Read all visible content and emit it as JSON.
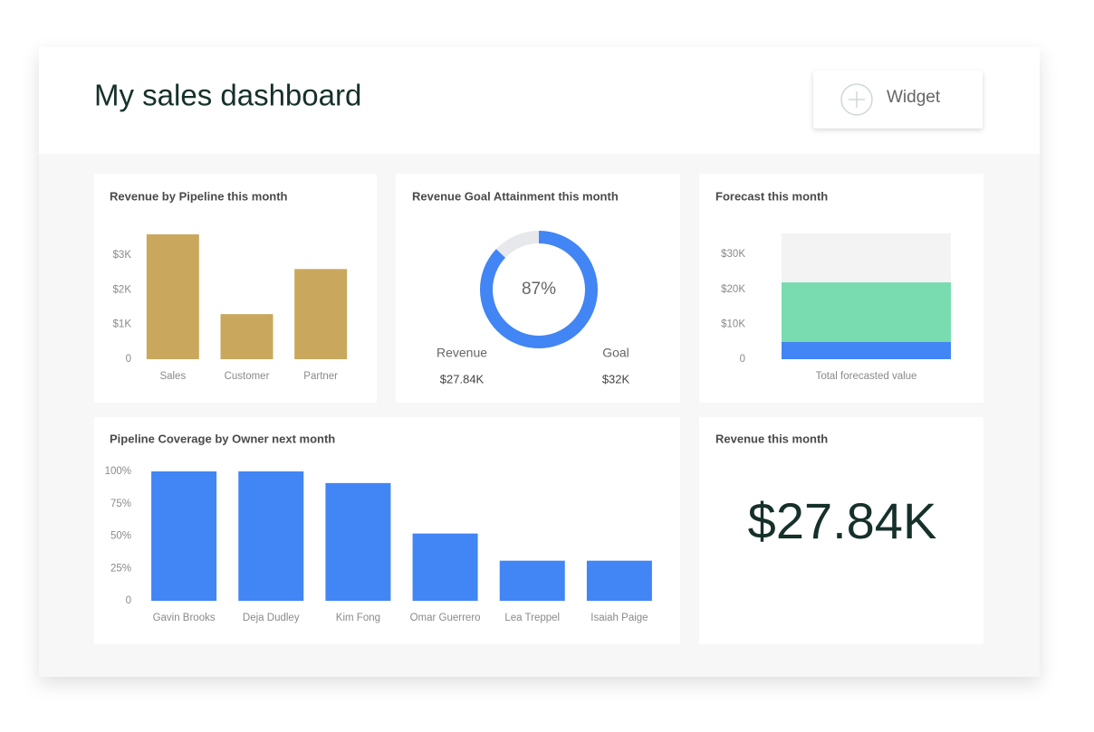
{
  "header": {
    "title": "My sales dashboard",
    "button": "Widget"
  },
  "chart_data": [
    {
      "type": "bar",
      "title": "Revenue by Pipeline this month",
      "categories": [
        "Sales",
        "Customer",
        "Partner"
      ],
      "values": [
        3600,
        1300,
        2600
      ],
      "color": "#c9a85e",
      "ylim": [
        0,
        3600
      ],
      "yticks": [
        0,
        {
          "value": 1000,
          "label": "$1K"
        },
        {
          "value": 2000,
          "label": "$2K"
        },
        {
          "value": 3000,
          "label": "$3K"
        }
      ]
    },
    {
      "type": "donut",
      "title": "Revenue Goal Attainment this month",
      "values": [
        87
      ],
      "value_labels": [
        "87%"
      ],
      "ylim": [
        0,
        100
      ],
      "color": "#4285f4",
      "track_color": "#e6e8ec",
      "stats": [
        {
          "name": "Revenue",
          "text": "$27.84K"
        },
        {
          "name": "Goal",
          "text": "$32K"
        }
      ]
    },
    {
      "type": "stacked_bar",
      "title": "Forecast this month",
      "categories": [
        "Total forecasted value"
      ],
      "series": [
        {
          "color": "#4285f4",
          "values": [
            5000
          ]
        },
        {
          "color": "#78dcb0",
          "values": [
            17000
          ]
        },
        {
          "color": "#f3f3f3",
          "values": [
            14000
          ]
        }
      ],
      "ylim": [
        0,
        36000
      ],
      "yticks": [
        0,
        {
          "value": 10000,
          "label": "$10K"
        },
        {
          "value": 20000,
          "label": "$20K"
        },
        {
          "value": 30000,
          "label": "$30K"
        }
      ]
    },
    {
      "type": "bar",
      "title": "Pipeline Coverage by Owner next month",
      "categories": [
        "Gavin Brooks",
        "Deja Dudley",
        "Kim Fong",
        "Omar Guerrero",
        "Lea Treppel",
        "Isaiah Paige"
      ],
      "values": [
        100,
        100,
        91,
        52,
        31,
        31
      ],
      "color": "#4285f4",
      "ylim": [
        0,
        100
      ],
      "yticks": [
        0,
        {
          "value": 25,
          "label": "25%"
        },
        {
          "value": 50,
          "label": "50%"
        },
        {
          "value": 75,
          "label": "75%"
        },
        {
          "value": 100,
          "label": "100%"
        }
      ]
    }
  ],
  "kpi": {
    "title": "Revenue this month",
    "value": "$27.84K"
  }
}
